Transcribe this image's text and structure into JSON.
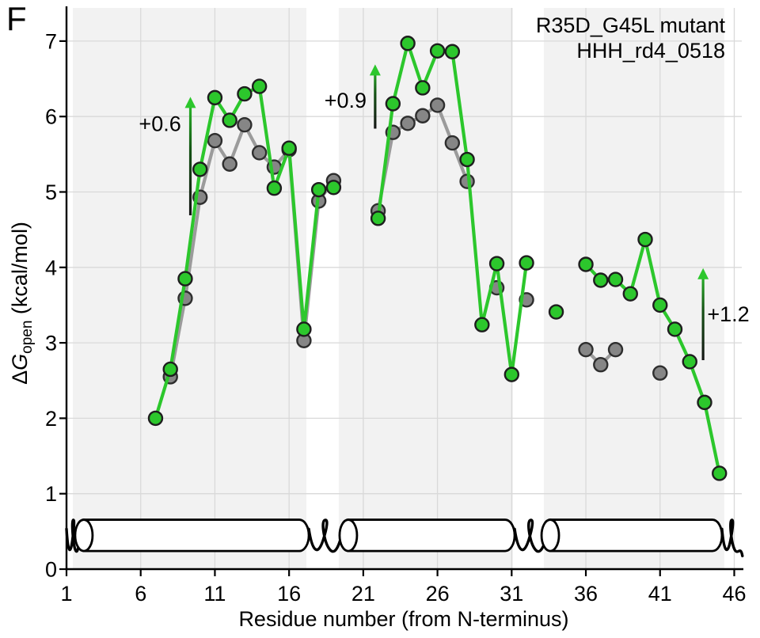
{
  "panel_label": "F",
  "legend": {
    "entries": [
      {
        "label": "R35D_G45L mutant",
        "color": "#2cc72c"
      },
      {
        "label": "HHH_rd4_0518",
        "color": "#4d4d4d"
      }
    ]
  },
  "axes": {
    "ylabel_delta": "Δ",
    "ylabel_g": "G",
    "ylabel_sub": "open",
    "ylabel_units": " (kcal/mol)"
  },
  "colors": {
    "mutant_green": "#2cc72c",
    "wildtype_gray_line": "#9b9b9b",
    "wildtype_gray_fill": "#868686",
    "band": "#f2f2f2",
    "grid": "#d9d9d9",
    "axis": "#000000",
    "annotation_arrow_dark": "#141414",
    "cartoon_black": "#000000"
  },
  "chart_data": {
    "type": "line",
    "title": "",
    "xlabel": "Residue number (from N-terminus)",
    "ylabel": "ΔG_open (kcal/mol)",
    "xlim": [
      1,
      46
    ],
    "ylim": [
      0,
      7.4
    ],
    "grid": true,
    "legend_position": "top-right",
    "xticks": [
      1,
      6,
      11,
      16,
      21,
      26,
      31,
      36,
      41,
      46
    ],
    "yticks": [
      0,
      1,
      2,
      3,
      4,
      5,
      6,
      7
    ],
    "series": [
      {
        "name": "R35D_G45L mutant",
        "line_color": "#2cc72c",
        "marker_color": "#2cc72c",
        "edge_color": "#1e1e1e",
        "segments": [
          [
            [
              7,
              2.0
            ],
            [
              8,
              2.65
            ],
            [
              9,
              3.85
            ],
            [
              10,
              5.3
            ],
            [
              11,
              6.25
            ],
            [
              12,
              5.95
            ],
            [
              13,
              6.3
            ],
            [
              14,
              6.4
            ],
            [
              15,
              5.05
            ],
            [
              16,
              5.58
            ],
            [
              17,
              3.18
            ],
            [
              18,
              5.03
            ],
            [
              19,
              5.06
            ]
          ],
          [
            [
              22,
              4.65
            ],
            [
              23,
              6.17
            ],
            [
              24,
              6.97
            ],
            [
              25,
              6.38
            ],
            [
              26,
              6.87
            ],
            [
              27,
              6.86
            ],
            [
              28,
              5.43
            ],
            [
              29,
              3.24
            ],
            [
              30,
              4.05
            ],
            [
              31,
              2.58
            ],
            [
              32,
              4.06
            ]
          ],
          [
            [
              34,
              3.41
            ]
          ],
          [
            [
              36,
              4.04
            ],
            [
              37,
              3.83
            ],
            [
              38,
              3.84
            ],
            [
              39,
              3.65
            ],
            [
              40,
              4.37
            ],
            [
              41,
              3.5
            ],
            [
              42,
              3.18
            ],
            [
              43,
              2.75
            ],
            [
              44,
              2.21
            ],
            [
              45,
              1.27
            ]
          ]
        ]
      },
      {
        "name": "HHH_rd4_0518",
        "line_color": "#9b9b9b",
        "marker_color": "#868686",
        "edge_color": "#2e2e2e",
        "segments": [
          [
            [
              8,
              2.55
            ],
            [
              9,
              3.59
            ],
            [
              10,
              4.93
            ],
            [
              11,
              5.68
            ],
            [
              12,
              5.37
            ],
            [
              13,
              5.89
            ],
            [
              14,
              5.52
            ],
            [
              15,
              5.33
            ],
            [
              16,
              5.56
            ],
            [
              17,
              3.03
            ],
            [
              18,
              4.88
            ],
            [
              19,
              5.15
            ]
          ],
          [
            [
              22,
              4.75
            ],
            [
              23,
              5.79
            ],
            [
              24,
              5.91
            ],
            [
              25,
              6.01
            ],
            [
              26,
              6.15
            ],
            [
              27,
              5.65
            ],
            [
              28,
              5.14
            ]
          ],
          [
            [
              30,
              3.73
            ]
          ],
          [
            [
              32,
              3.57
            ]
          ],
          [
            [
              36,
              2.91
            ],
            [
              37,
              2.71
            ],
            [
              38,
              2.91
            ]
          ],
          [
            [
              41,
              2.6
            ]
          ]
        ]
      }
    ],
    "annotations": [
      {
        "label": "+0.6",
        "text_x": 7.3,
        "text_y": 5.9,
        "arrow_x": 9.35,
        "arrow_y1": 4.69,
        "arrow_y2": 6.25
      },
      {
        "label": "+0.9",
        "text_x": 19.8,
        "text_y": 6.21,
        "arrow_x": 21.8,
        "arrow_y1": 5.84,
        "arrow_y2": 6.68
      },
      {
        "label": "+1.2",
        "text_x": 45.6,
        "text_y": 3.38,
        "arrow_x": 43.9,
        "arrow_y1": 2.77,
        "arrow_y2": 3.98
      }
    ],
    "helix_shading_bands": [
      [
        1.43,
        17.17
      ],
      [
        19.35,
        31.09
      ],
      [
        33.17,
        45.33
      ]
    ],
    "helix_cylinders": [
      [
        2.17,
        17.33
      ],
      [
        19.99,
        31.2
      ],
      [
        33.6,
        45.17
      ]
    ],
    "loop_squiggles": [
      [
        1.0,
        1.95
      ],
      [
        17.33,
        19.62
      ],
      [
        31.2,
        33.45
      ],
      [
        45.17,
        46.55
      ]
    ],
    "cylinder_y": [
      0.24,
      0.655
    ]
  }
}
